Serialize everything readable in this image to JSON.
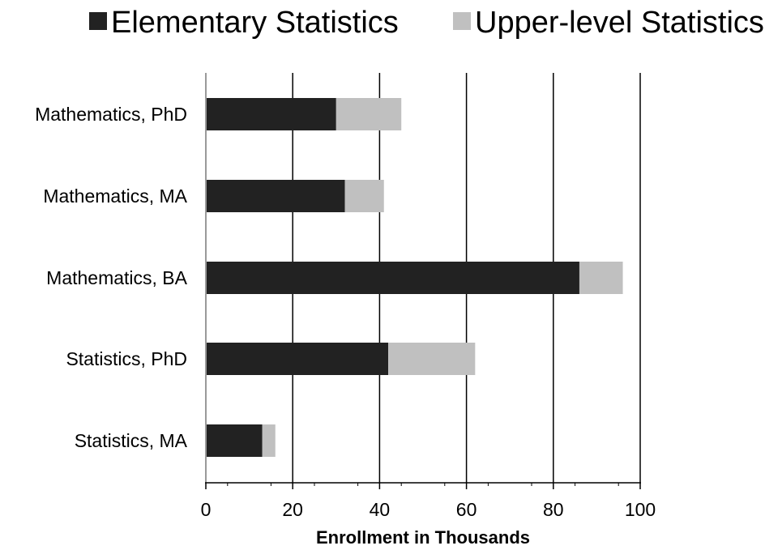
{
  "chart_data": {
    "type": "bar",
    "orientation": "horizontal",
    "stacked": true,
    "title": "",
    "categories": [
      "Mathematics, PhD",
      "Mathematics, MA",
      "Mathematics, BA",
      "Statistics, PhD",
      "Statistics, MA"
    ],
    "series": [
      {
        "name": "Elementary Statistics",
        "color": "#222222",
        "values": [
          30,
          32,
          86,
          42,
          13
        ]
      },
      {
        "name": "Upper-level Statistics",
        "color": "#c0c0c0",
        "values": [
          15,
          9,
          10,
          20,
          3
        ]
      }
    ],
    "xlabel": "Enrollment in Thousands",
    "ylabel": "",
    "xlim": [
      0,
      100
    ],
    "xticks": [
      "0",
      "20",
      "40",
      "60",
      "80",
      "100"
    ],
    "grid": "vertical",
    "legend": "top"
  }
}
